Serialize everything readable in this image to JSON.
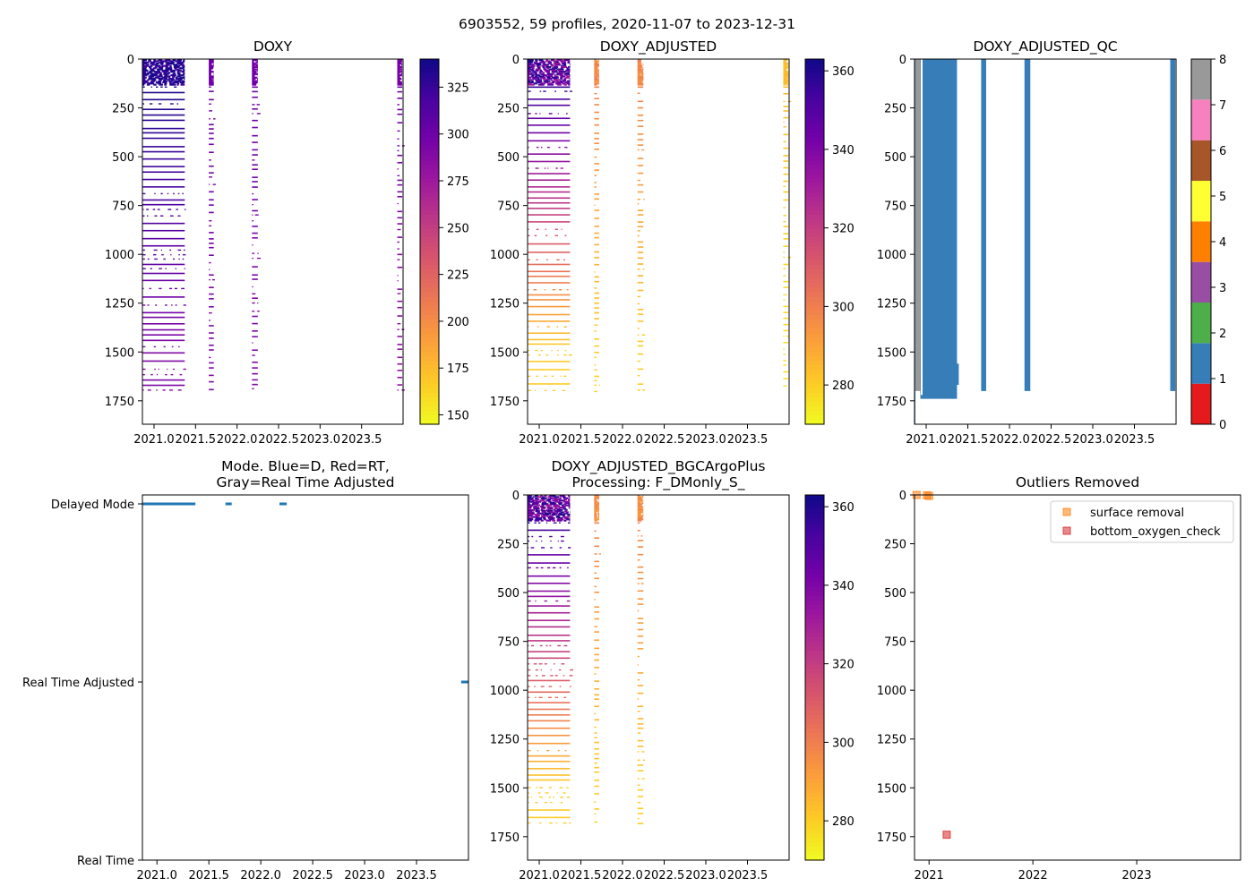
{
  "figure": {
    "suptitle": "6903552, 59 profiles, 2020-11-07 to 2023-12-31"
  },
  "panels": {
    "doxy": {
      "title": "DOXY",
      "yticks": [
        "0",
        "250",
        "500",
        "750",
        "1000",
        "1250",
        "1500",
        "1750"
      ],
      "xticks": [
        "2021.0",
        "2021.5",
        "2022.0",
        "2022.5",
        "2023.0",
        "2023.5"
      ],
      "cbar_ticks": [
        "150",
        "175",
        "200",
        "225",
        "250",
        "275",
        "300",
        "325"
      ]
    },
    "doxy_adj": {
      "title": "DOXY_ADJUSTED",
      "yticks": [
        "0",
        "250",
        "500",
        "750",
        "1000",
        "1250",
        "1500",
        "1750"
      ],
      "xticks": [
        "2021.0",
        "2021.5",
        "2022.0",
        "2022.5",
        "2023.0",
        "2023.5"
      ],
      "cbar_ticks": [
        "280",
        "300",
        "320",
        "340",
        "360"
      ]
    },
    "qc": {
      "title": "DOXY_ADJUSTED_QC",
      "yticks": [
        "0",
        "250",
        "500",
        "750",
        "1000",
        "1250",
        "1500",
        "1750"
      ],
      "xticks": [
        "2021.0",
        "2021.5",
        "2022.0",
        "2022.5",
        "2023.0",
        "2023.5"
      ],
      "cbar_ticks": [
        "0",
        "1",
        "2",
        "3",
        "4",
        "5",
        "6",
        "7",
        "8"
      ]
    },
    "mode": {
      "title_line1": "Mode. Blue=D, Red=RT,",
      "title_line2": "Gray=Real Time Adjusted",
      "yticks": [
        "Delayed Mode",
        "Real Time Adjusted",
        "Real Time"
      ],
      "xticks": [
        "2021.0",
        "2021.5",
        "2022.0",
        "2022.5",
        "2023.0",
        "2023.5"
      ]
    },
    "bgc": {
      "title_line1": "DOXY_ADJUSTED_BGCArgoPlus",
      "title_line2": "Processing: F_DMonly_S_",
      "yticks": [
        "0",
        "250",
        "500",
        "750",
        "1000",
        "1250",
        "1500",
        "1750"
      ],
      "xticks": [
        "2021.0",
        "2021.5",
        "2022.0",
        "2022.5",
        "2023.0",
        "2023.5"
      ],
      "cbar_ticks": [
        "280",
        "300",
        "320",
        "340",
        "360"
      ]
    },
    "outliers": {
      "title": "Outliers Removed",
      "yticks": [
        "0",
        "250",
        "500",
        "750",
        "1000",
        "1250",
        "1500",
        "1750"
      ],
      "xticks": [
        "2021",
        "2022",
        "2023"
      ],
      "legend": [
        "surface removal",
        "bottom_oxygen_check"
      ]
    }
  },
  "colors": {
    "mode_line": "#1f77b4",
    "qc_fill": "#377eb8",
    "qc_gray": "#999999",
    "surface_removal": "#ff7f0e",
    "bottom_oxygen_check": "#d62728",
    "qc_palette": [
      "#e41a1c",
      "#377eb8",
      "#4daf4a",
      "#984ea3",
      "#ff7f00",
      "#ffff33",
      "#a65628",
      "#f781bf",
      "#999999"
    ]
  },
  "chart_data": [
    {
      "type": "heatmap",
      "title": "DOXY",
      "xlabel": "",
      "ylabel": "",
      "xlim": [
        2020.86,
        2024.0
      ],
      "ylim": [
        1870,
        0
      ],
      "colorbar": {
        "colormap": "plasma_r",
        "range": [
          145,
          340
        ]
      },
      "clusters": [
        {
          "t_start": 2020.86,
          "t_end": 2021.37,
          "depth_max": 1700,
          "value_range": [
            290,
            340
          ]
        },
        {
          "t_start": 2021.66,
          "t_end": 2021.72,
          "depth_max": 1700,
          "value_range": [
            290,
            300
          ]
        },
        {
          "t_start": 2022.18,
          "t_end": 2022.25,
          "depth_max": 1700,
          "value_range": [
            290,
            300
          ]
        },
        {
          "t_start": 2023.93,
          "t_end": 2023.99,
          "depth_max": 1700,
          "value_range": [
            280,
            300
          ]
        }
      ]
    },
    {
      "type": "heatmap",
      "title": "DOXY_ADJUSTED",
      "xlim": [
        2020.86,
        2024.0
      ],
      "ylim": [
        1870,
        0
      ],
      "colorbar": {
        "colormap": "plasma_r",
        "range": [
          270,
          363
        ]
      },
      "clusters": [
        {
          "t_start": 2020.86,
          "t_end": 2021.37,
          "depth_max": 1700,
          "value_range": [
            280,
            363
          ]
        },
        {
          "t_start": 2021.66,
          "t_end": 2021.72,
          "depth_max": 1700,
          "value_range": [
            280,
            300
          ]
        },
        {
          "t_start": 2022.18,
          "t_end": 2022.25,
          "depth_max": 1700,
          "value_range": [
            280,
            300
          ]
        },
        {
          "t_start": 2023.93,
          "t_end": 2023.99,
          "depth_max": 1700,
          "value_range": [
            275,
            285
          ]
        }
      ]
    },
    {
      "type": "heatmap",
      "title": "DOXY_ADJUSTED_QC",
      "xlim": [
        2020.86,
        2024.0
      ],
      "ylim": [
        1870,
        0
      ],
      "colorbar": {
        "colormap": "Set1",
        "range": [
          0,
          8
        ]
      },
      "flag_bands": [
        {
          "t_start": 2020.86,
          "t_end": 2020.87,
          "depth_max": 1870,
          "flag": 1
        },
        {
          "t_start": 2020.87,
          "t_end": 2020.93,
          "depth_max": 1700,
          "flag": 8
        },
        {
          "t_start": 2020.93,
          "t_end": 2021.37,
          "depth_max": 1740,
          "flag": 1
        },
        {
          "t_start": 2021.66,
          "t_end": 2021.72,
          "depth_max": 1700,
          "flag": 1
        },
        {
          "t_start": 2022.18,
          "t_end": 2022.25,
          "depth_max": 1700,
          "flag": 1
        },
        {
          "t_start": 2023.93,
          "t_end": 2023.99,
          "depth_max": 1700,
          "flag": 1
        }
      ]
    },
    {
      "type": "line",
      "title": "Mode. Blue=D, Red=RT, Gray=Real Time Adjusted",
      "xlim": [
        2020.86,
        2024.0
      ],
      "categories": [
        "Real Time",
        "Real Time Adjusted",
        "Delayed Mode"
      ],
      "series": [
        {
          "name": "Delayed Mode",
          "segments": [
            [
              2020.86,
              2021.37
            ],
            [
              2021.66,
              2021.72
            ],
            [
              2022.18,
              2022.25
            ]
          ]
        },
        {
          "name": "Real Time Adjusted",
          "segments": [
            [
              2023.93,
              2024.0
            ]
          ]
        }
      ]
    },
    {
      "type": "heatmap",
      "title": "DOXY_ADJUSTED_BGCArgoPlus Processing: F_DMonly_S_",
      "xlim": [
        2020.86,
        2024.0
      ],
      "ylim": [
        1870,
        0
      ],
      "colorbar": {
        "colormap": "plasma_r",
        "range": [
          270,
          363
        ]
      },
      "clusters": [
        {
          "t_start": 2020.86,
          "t_end": 2021.37,
          "depth_max": 1700,
          "value_range": [
            280,
            363
          ]
        },
        {
          "t_start": 2021.66,
          "t_end": 2021.72,
          "depth_max": 1700,
          "value_range": [
            280,
            300
          ]
        },
        {
          "t_start": 2022.18,
          "t_end": 2022.25,
          "depth_max": 1700,
          "value_range": [
            280,
            300
          ]
        }
      ]
    },
    {
      "type": "scatter",
      "title": "Outliers Removed",
      "xlim": [
        2020.86,
        2024.0
      ],
      "ylim": [
        1870,
        0
      ],
      "series": [
        {
          "name": "surface removal",
          "points": [
            [
              2020.88,
              0
            ],
            [
              2020.98,
              2
            ],
            [
              2021.0,
              5
            ]
          ]
        },
        {
          "name": "bottom_oxygen_check",
          "points": [
            [
              2021.17,
              1740
            ]
          ]
        }
      ]
    }
  ]
}
